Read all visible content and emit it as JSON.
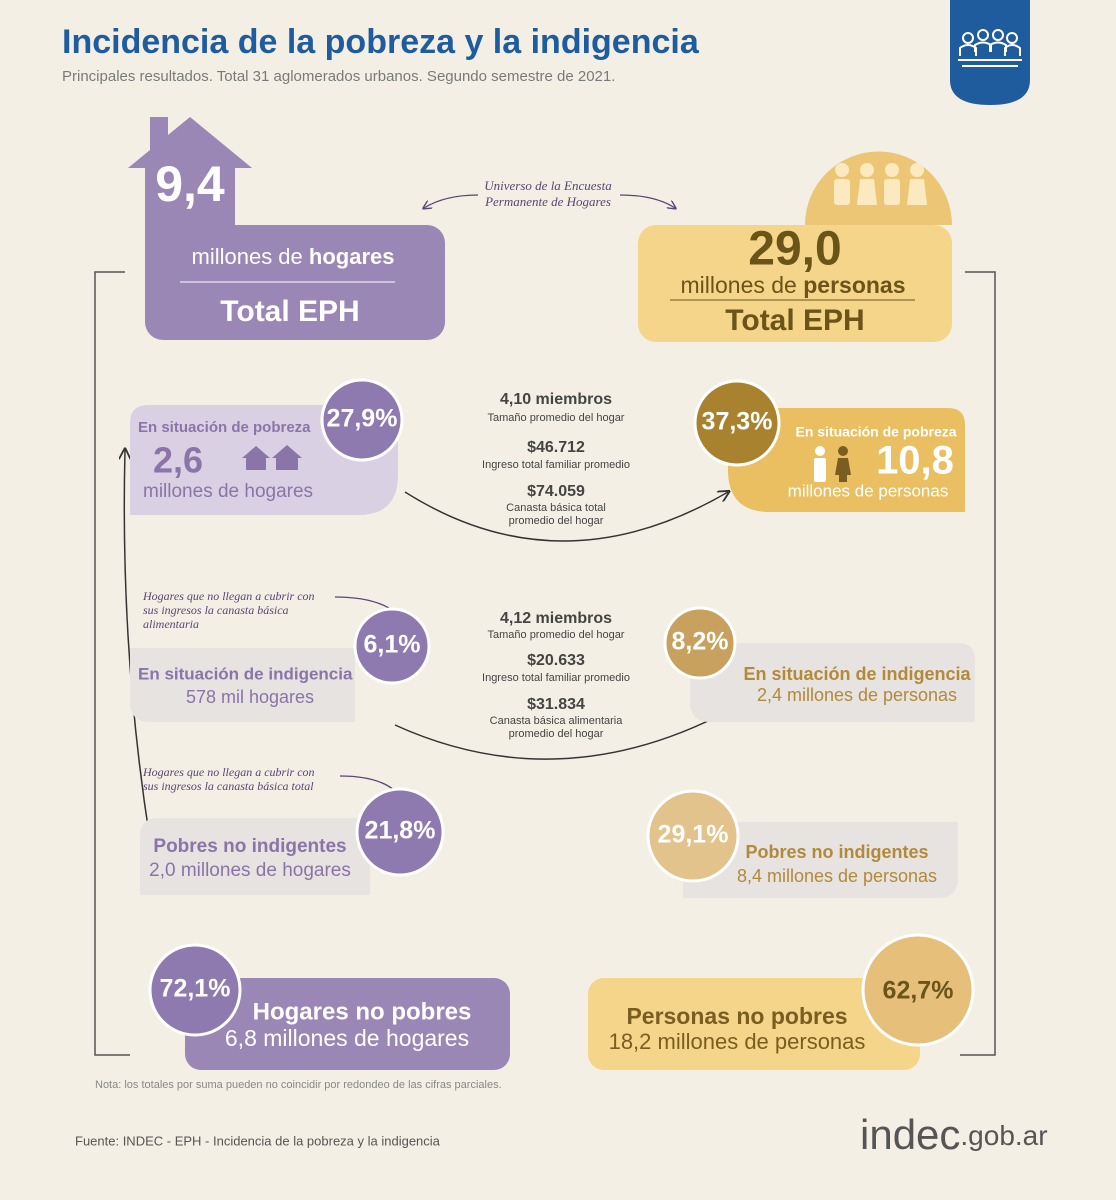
{
  "header": {
    "title": "Incidencia de la pobreza y la indigencia",
    "subtitle": "Principales resultados. Total 31 aglomerados urbanos. Segundo semestre de 2021."
  },
  "universe_note": [
    "Universo de la Encuesta",
    "Permanente de Hogares"
  ],
  "households": {
    "total": {
      "value": "9,4",
      "unit_prefix": "millones de ",
      "unit_bold": "hogares",
      "label": "Total EPH"
    },
    "poverty": {
      "label": "En situación de pobreza",
      "pct": "27,9%",
      "value": "2,6",
      "unit": "millones de hogares"
    },
    "indigence_note": [
      "Hogares que no llegan a cubrir con",
      "sus ingresos la canasta básica",
      "alimentaria"
    ],
    "indigence": {
      "label": "En situación de indigencia",
      "pct": "6,1%",
      "value": "578 mil hogares"
    },
    "total_basket_note": [
      "Hogares que no llegan a cubrir con",
      "sus ingresos la canasta básica total"
    ],
    "non_indigent_poor": {
      "label": "Pobres no indigentes",
      "pct": "21,8%",
      "value": "2,0 millones de hogares"
    },
    "non_poor": {
      "label": "Hogares no pobres",
      "pct": "72,1%",
      "value": "6,8 millones de hogares"
    }
  },
  "persons": {
    "total": {
      "value": "29,0",
      "unit_prefix": "millones de ",
      "unit_bold": "personas",
      "label": "Total EPH"
    },
    "poverty": {
      "label": "En situación de pobreza",
      "pct": "37,3%",
      "value": "10,8",
      "unit": "millones de personas"
    },
    "indigence": {
      "label": "En situación de indigencia",
      "pct": "8,2%",
      "value": "2,4 millones de personas"
    },
    "non_indigent_poor": {
      "label": "Pobres no indigentes",
      "pct": "29,1%",
      "value": "8,4 millones de personas"
    },
    "non_poor": {
      "label": "Personas no pobres",
      "pct": "62,7%",
      "value": "18,2 millones de personas"
    }
  },
  "poverty_stats": [
    {
      "value": "4,10 miembros",
      "label": [
        "Tamaño promedio del hogar"
      ]
    },
    {
      "value": "$46.712",
      "label": [
        "Ingreso total familiar promedio"
      ]
    },
    {
      "value": "$74.059",
      "label": [
        "Canasta básica total",
        "promedio del hogar"
      ]
    }
  ],
  "indigence_stats": [
    {
      "value": "4,12 miembros",
      "label": [
        "Tamaño promedio del hogar"
      ]
    },
    {
      "value": "$20.633",
      "label": [
        "Ingreso total familiar promedio"
      ]
    },
    {
      "value": "$31.834",
      "label": [
        "Canasta básica alimentaria",
        "promedio del hogar"
      ]
    }
  ],
  "footer": {
    "note": "Nota: los totales por suma pueden no coincidir por redondeo de las cifras parciales.",
    "source": "Fuente: INDEC - EPH - Incidencia de la pobreza y la indigencia",
    "logo": "indec",
    "logo_suffix": ".gob.ar"
  }
}
